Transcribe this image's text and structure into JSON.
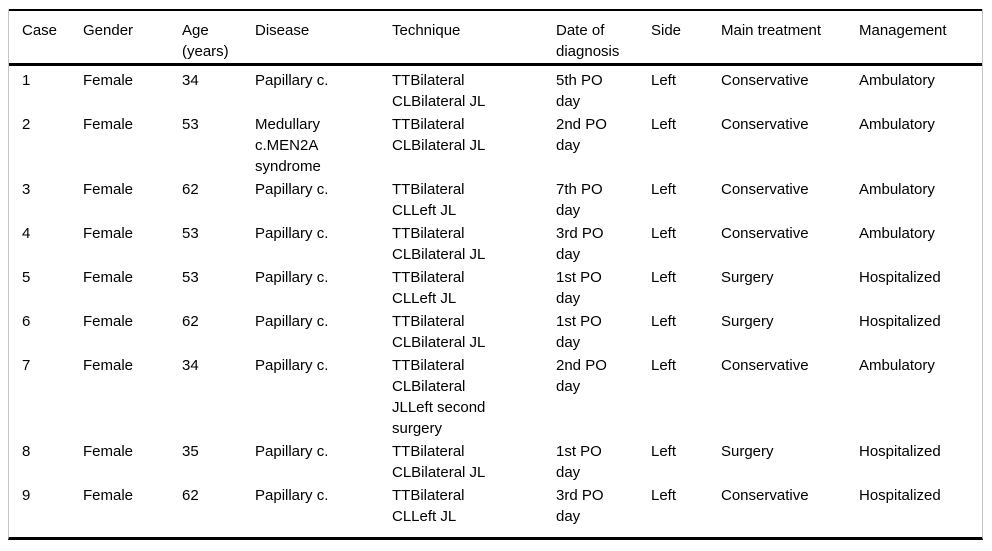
{
  "table": {
    "columns": [
      "Case",
      "Gender",
      "Age\n(years)",
      "Disease",
      "Technique",
      "Date of\ndiagnosis",
      "Side",
      "Main treatment",
      "Management"
    ],
    "rows": [
      [
        "1",
        "Female",
        "34",
        "Papillary c.",
        "TTBilateral\nCLBilateral JL",
        "5th PO\nday",
        "Left",
        "Conservative",
        "Ambulatory"
      ],
      [
        "2",
        "Female",
        "53",
        "Medullary\nc.MEN2A\nsyndrome",
        "TTBilateral\nCLBilateral JL",
        "2nd PO\nday",
        "Left",
        "Conservative",
        "Ambulatory"
      ],
      [
        "3",
        "Female",
        "62",
        "Papillary c.",
        "TTBilateral\nCLLeft JL",
        "7th PO\nday",
        "Left",
        "Conservative",
        "Ambulatory"
      ],
      [
        "4",
        "Female",
        "53",
        "Papillary c.",
        "TTBilateral\nCLBilateral JL",
        "3rd PO\nday",
        "Left",
        "Conservative",
        "Ambulatory"
      ],
      [
        "5",
        "Female",
        "53",
        "Papillary c.",
        "TTBilateral\nCLLeft JL",
        "1st PO\nday",
        "Left",
        "Surgery",
        "Hospitalized"
      ],
      [
        "6",
        "Female",
        "62",
        "Papillary c.",
        "TTBilateral\nCLBilateral JL",
        "1st PO\nday",
        "Left",
        "Surgery",
        "Hospitalized"
      ],
      [
        "7",
        "Female",
        "34",
        "Papillary c.",
        "TTBilateral\nCLBilateral\nJLLeft second\nsurgery",
        "2nd PO\nday",
        "Left",
        "Conservative",
        "Ambulatory"
      ],
      [
        "8",
        "Female",
        "35",
        "Papillary c.",
        "TTBilateral\nCLBilateral JL",
        "1st PO\nday",
        "Left",
        "Surgery",
        "Hospitalized"
      ],
      [
        "9",
        "Female",
        "62",
        "Papillary c.",
        "TTBilateral\nCLLeft JL",
        "3rd PO\nday",
        "Left",
        "Conservative",
        "Hospitalized"
      ]
    ]
  },
  "colors": {
    "rule": "#000000",
    "frame_line": "#c4c4c4",
    "text": "#000000",
    "background": "#ffffff"
  }
}
